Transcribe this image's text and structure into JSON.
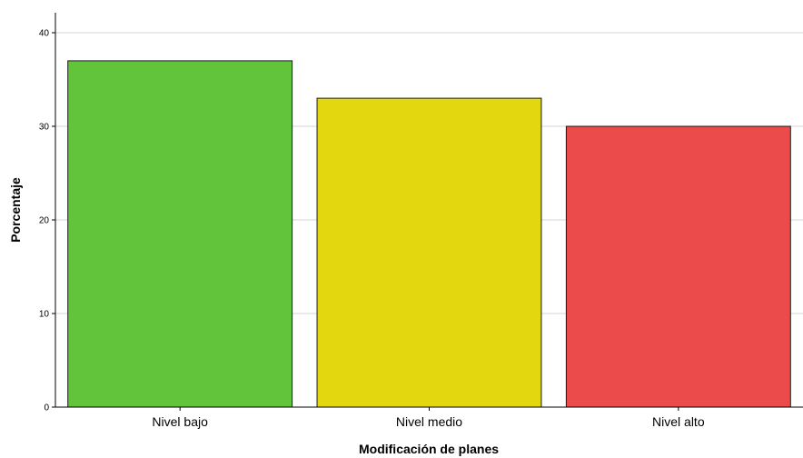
{
  "chart_data": {
    "type": "bar",
    "title": "",
    "xlabel": "Modificación de planes",
    "ylabel": "Porcentaje",
    "categories": [
      "Nivel bajo",
      "Nivel medio",
      "Nivel alto"
    ],
    "values": [
      37,
      33,
      30
    ],
    "colors": [
      "#62c43b",
      "#e3d80f",
      "#ec4b4b"
    ],
    "ylim": [
      0,
      40
    ],
    "yticks": [
      "0",
      "10",
      "20",
      "30",
      "40"
    ],
    "grid": true,
    "legend": "none"
  }
}
